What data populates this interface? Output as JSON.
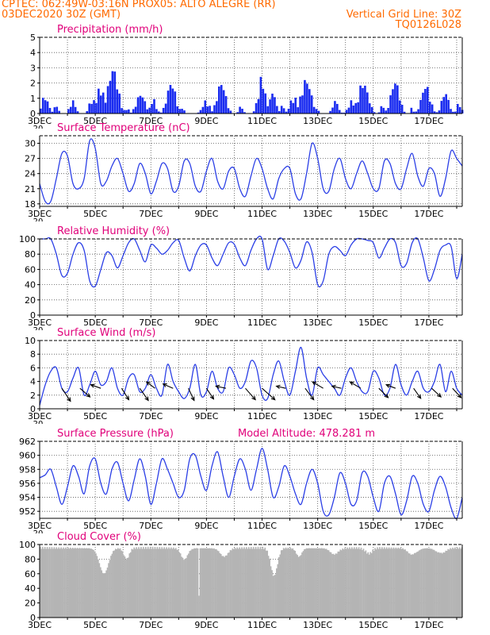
{
  "header": {
    "line1": "CPTEC:   062:49W-03:16N  PROX05: ALTO ALEGRE (RR)",
    "line2": "03DEC2020 30Z (GMT)",
    "right1": "Vertical Grid Line: 30Z",
    "right2": "TQ0126L028"
  },
  "colors": {
    "header": "#ff6a00",
    "title": "#e0007a",
    "series": "#2b3fe6",
    "bars": "#1a2cf0",
    "wind_arrow": "#000000",
    "cloud": "#b4b4b4"
  },
  "x_axis": {
    "tick_labels": [
      "3DEC",
      "5DEC",
      "7DEC",
      "9DEC",
      "11DEC",
      "13DEC",
      "15DEC",
      "17DEC"
    ],
    "label_positions_days": [
      0,
      2,
      4,
      6,
      8,
      10,
      12,
      14
    ],
    "range_days": [
      0,
      15.2
    ],
    "cutoff_label": "20"
  },
  "panels": [
    {
      "id": "precip",
      "title": "Precipitation (mm/h)"
    },
    {
      "id": "temp",
      "title": "Surface Temperature (nC)"
    },
    {
      "id": "rh",
      "title": "Relative Humidity (%)"
    },
    {
      "id": "wind",
      "title": "Surface Wind (m/s)"
    },
    {
      "id": "pres",
      "title": "Surface Pressure (hPa)",
      "subtitle": "Model Altitude: 478.281 m"
    },
    {
      "id": "cloud",
      "title": "Cloud Cover (%)"
    }
  ],
  "chart_data": [
    {
      "type": "bar",
      "title": "Precipitation (mm/h)",
      "ylim": [
        0,
        5
      ],
      "yticks": [
        "0",
        "1",
        "2",
        "3",
        "4",
        "5"
      ],
      "events": [
        {
          "x": 0.15,
          "peak": 1.2,
          "width": 0.25
        },
        {
          "x": 0.55,
          "peak": 0.6,
          "width": 0.15
        },
        {
          "x": 1.15,
          "peak": 0.9,
          "width": 0.2
        },
        {
          "x": 1.85,
          "peak": 1.1,
          "width": 0.2
        },
        {
          "x": 2.15,
          "peak": 1.8,
          "width": 0.3
        },
        {
          "x": 2.6,
          "peak": 3.2,
          "width": 0.35
        },
        {
          "x": 3.1,
          "peak": 0.4,
          "width": 0.15
        },
        {
          "x": 3.6,
          "peak": 1.4,
          "width": 0.3
        },
        {
          "x": 4.05,
          "peak": 1.0,
          "width": 0.2
        },
        {
          "x": 4.7,
          "peak": 2.2,
          "width": 0.3
        },
        {
          "x": 5.1,
          "peak": 0.5,
          "width": 0.1
        },
        {
          "x": 5.95,
          "peak": 0.9,
          "width": 0.25
        },
        {
          "x": 6.5,
          "peak": 2.2,
          "width": 0.3
        },
        {
          "x": 7.2,
          "peak": 0.5,
          "width": 0.15
        },
        {
          "x": 7.95,
          "peak": 2.5,
          "width": 0.25
        },
        {
          "x": 8.35,
          "peak": 1.6,
          "width": 0.2
        },
        {
          "x": 8.7,
          "peak": 0.6,
          "width": 0.15
        },
        {
          "x": 9.1,
          "peak": 1.2,
          "width": 0.25
        },
        {
          "x": 9.55,
          "peak": 2.4,
          "width": 0.35
        },
        {
          "x": 9.95,
          "peak": 0.4,
          "width": 0.1
        },
        {
          "x": 10.6,
          "peak": 0.9,
          "width": 0.2
        },
        {
          "x": 11.2,
          "peak": 0.9,
          "width": 0.25
        },
        {
          "x": 11.6,
          "peak": 2.2,
          "width": 0.35
        },
        {
          "x": 12.3,
          "peak": 0.6,
          "width": 0.15
        },
        {
          "x": 12.75,
          "peak": 2.3,
          "width": 0.3
        },
        {
          "x": 13.35,
          "peak": 0.4,
          "width": 0.1
        },
        {
          "x": 13.85,
          "peak": 2.0,
          "width": 0.3
        },
        {
          "x": 14.55,
          "peak": 1.5,
          "width": 0.25
        },
        {
          "x": 15.05,
          "peak": 0.8,
          "width": 0.15
        }
      ]
    },
    {
      "type": "line",
      "title": "Surface Temperature (nC)",
      "ylim": [
        17.5,
        31.5
      ],
      "yticks": [
        "18",
        "21",
        "24",
        "27",
        "30"
      ],
      "ytick_values": [
        18,
        21,
        24,
        27,
        30
      ],
      "x": [
        0,
        0.2,
        0.4,
        0.6,
        0.8,
        1,
        1.2,
        1.4,
        1.6,
        1.8,
        2,
        2.2,
        2.4,
        2.6,
        2.8,
        3,
        3.2,
        3.4,
        3.6,
        3.8,
        4,
        4.2,
        4.4,
        4.6,
        4.8,
        5,
        5.2,
        5.4,
        5.6,
        5.8,
        6,
        6.2,
        6.4,
        6.6,
        6.8,
        7,
        7.2,
        7.4,
        7.6,
        7.8,
        8,
        8.2,
        8.4,
        8.6,
        8.8,
        9,
        9.2,
        9.4,
        9.6,
        9.8,
        10,
        10.2,
        10.4,
        10.6,
        10.8,
        11,
        11.2,
        11.4,
        11.6,
        11.8,
        12,
        12.2,
        12.4,
        12.6,
        12.8,
        13,
        13.2,
        13.4,
        13.6,
        13.8,
        14,
        14.2,
        14.4,
        14.6,
        14.8,
        15,
        15.2
      ],
      "y": [
        22,
        18.5,
        18.5,
        23,
        28,
        27.5,
        22,
        21,
        23,
        30.5,
        29,
        22,
        22.5,
        25.5,
        27,
        24,
        20.5,
        22,
        26,
        24,
        20,
        22.5,
        26,
        25,
        20.5,
        21.5,
        26.5,
        26,
        21.5,
        20.5,
        24.5,
        27,
        22.5,
        21,
        24.5,
        25,
        21,
        19.5,
        23.5,
        27,
        25,
        21,
        19,
        23,
        25,
        25,
        20,
        19,
        24,
        30,
        27,
        21,
        20.5,
        25,
        27,
        23,
        21,
        24,
        26.5,
        24,
        21,
        21,
        26.5,
        26,
        22,
        21,
        25,
        28,
        23.5,
        21.5,
        25,
        24,
        19.5,
        23,
        28.5,
        27,
        25.5
      ]
    },
    {
      "type": "line",
      "title": "Relative Humidity (%)",
      "ylim": [
        0,
        100
      ],
      "yticks": [
        "0",
        "20",
        "40",
        "60",
        "80",
        "100"
      ],
      "ytick_values": [
        0,
        20,
        40,
        60,
        80,
        100
      ],
      "x": [
        0,
        0.2,
        0.4,
        0.6,
        0.8,
        1,
        1.2,
        1.4,
        1.6,
        1.8,
        2,
        2.2,
        2.4,
        2.6,
        2.8,
        3,
        3.2,
        3.4,
        3.6,
        3.8,
        4,
        4.2,
        4.4,
        4.6,
        4.8,
        5,
        5.2,
        5.4,
        5.6,
        5.8,
        6,
        6.2,
        6.4,
        6.6,
        6.8,
        7,
        7.2,
        7.4,
        7.6,
        7.8,
        8,
        8.2,
        8.4,
        8.6,
        8.8,
        9,
        9.2,
        9.4,
        9.6,
        9.8,
        10,
        10.2,
        10.4,
        10.6,
        10.8,
        11,
        11.2,
        11.4,
        11.6,
        11.8,
        12,
        12.2,
        12.4,
        12.6,
        12.8,
        13,
        13.2,
        13.4,
        13.6,
        13.8,
        14,
        14.2,
        14.4,
        14.6,
        14.8,
        15,
        15.2
      ],
      "y": [
        100,
        100,
        100,
        80,
        52,
        55,
        80,
        95,
        85,
        45,
        38,
        60,
        82,
        78,
        62,
        78,
        95,
        100,
        85,
        70,
        92,
        88,
        80,
        85,
        95,
        98,
        75,
        58,
        78,
        92,
        92,
        75,
        65,
        80,
        95,
        93,
        75,
        65,
        85,
        100,
        100,
        60,
        78,
        100,
        97,
        82,
        62,
        72,
        96,
        82,
        40,
        45,
        80,
        90,
        85,
        78,
        92,
        100,
        100,
        98,
        95,
        75,
        88,
        100,
        95,
        65,
        68,
        95,
        100,
        75,
        45,
        60,
        85,
        92,
        90,
        48,
        80
      ]
    },
    {
      "type": "line",
      "title": "Surface Wind (m/s)",
      "ylim": [
        0,
        10
      ],
      "yticks": [
        "0",
        "2",
        "4",
        "6",
        "8",
        "10"
      ],
      "ytick_values": [
        0,
        2,
        4,
        6,
        8,
        10
      ],
      "x": [
        0,
        0.2,
        0.4,
        0.6,
        0.8,
        1,
        1.2,
        1.4,
        1.6,
        1.8,
        2,
        2.2,
        2.4,
        2.6,
        2.8,
        3,
        3.2,
        3.4,
        3.6,
        3.8,
        4,
        4.2,
        4.4,
        4.6,
        4.8,
        5,
        5.2,
        5.4,
        5.6,
        5.8,
        6,
        6.2,
        6.4,
        6.6,
        6.8,
        7,
        7.2,
        7.4,
        7.6,
        7.8,
        8,
        8.2,
        8.4,
        8.6,
        8.8,
        9,
        9.2,
        9.4,
        9.6,
        9.8,
        10,
        10.2,
        10.4,
        10.6,
        10.8,
        11,
        11.2,
        11.4,
        11.6,
        11.8,
        12,
        12.2,
        12.4,
        12.6,
        12.8,
        13,
        13.2,
        13.4,
        13.6,
        13.8,
        14,
        14.2,
        14.4,
        14.6,
        14.8,
        15,
        15.2
      ],
      "y": [
        0.5,
        3.5,
        5.5,
        6,
        3,
        2.5,
        4.5,
        6,
        2,
        3.5,
        5.5,
        3.5,
        4,
        6,
        3,
        2,
        4.5,
        5,
        2.5,
        3,
        5,
        3,
        2,
        6.5,
        4,
        2.5,
        1.5,
        3,
        6.5,
        2,
        2.5,
        5.5,
        3,
        2.5,
        6,
        5,
        3,
        4,
        7,
        6,
        2,
        1.5,
        5,
        7,
        4,
        2,
        5.5,
        9,
        4.5,
        2,
        6,
        5,
        4,
        3,
        2,
        4.5,
        6,
        4,
        2.5,
        2.5,
        5.5,
        4.5,
        2,
        3,
        6.5,
        3.5,
        2,
        4,
        5.5,
        3,
        2.5,
        4,
        6.5,
        2.5,
        5.5,
        3,
        2
      ],
      "arrows": [
        {
          "x": 0.8,
          "u": 1.2,
          "v": -1.8
        },
        {
          "x": 1.45,
          "u": 1.4,
          "v": -1.2
        },
        {
          "x": 2.2,
          "u": -1.4,
          "v": 0.5
        },
        {
          "x": 2.95,
          "u": 1,
          "v": -1.6
        },
        {
          "x": 3.6,
          "u": 1.2,
          "v": -1.7
        },
        {
          "x": 4.15,
          "u": -1.2,
          "v": 0.9
        },
        {
          "x": 4.8,
          "u": -1.4,
          "v": 0.6
        },
        {
          "x": 5.35,
          "u": 0.8,
          "v": -1.7
        },
        {
          "x": 6.0,
          "u": 1.0,
          "v": -1.5
        },
        {
          "x": 6.7,
          "u": -1.4,
          "v": 0.3
        },
        {
          "x": 7.4,
          "u": 1.4,
          "v": -1.6
        },
        {
          "x": 8.0,
          "u": 1.8,
          "v": -1.6
        },
        {
          "x": 8.85,
          "u": -1.3,
          "v": 0.3
        },
        {
          "x": 9.55,
          "u": 1.2,
          "v": -1.6
        },
        {
          "x": 10.2,
          "u": -1.5,
          "v": 0.9
        },
        {
          "x": 10.85,
          "u": -1.3,
          "v": 0.3
        },
        {
          "x": 11.55,
          "u": -1.5,
          "v": 0.9
        },
        {
          "x": 12.2,
          "u": 1.3,
          "v": -1.3
        },
        {
          "x": 12.8,
          "u": -1.3,
          "v": 0.5
        },
        {
          "x": 13.45,
          "u": 1.0,
          "v": -1.4
        },
        {
          "x": 14.1,
          "u": 1.3,
          "v": -1.2
        },
        {
          "x": 14.85,
          "u": 1.2,
          "v": -1.3
        }
      ]
    },
    {
      "type": "line",
      "title": "Surface Pressure (hPa)",
      "ylim": [
        951,
        962
      ],
      "yticks": [
        "952",
        "954",
        "956",
        "958",
        "960",
        "962"
      ],
      "ytick_values": [
        952,
        954,
        956,
        958,
        960,
        962
      ],
      "x": [
        0,
        0.2,
        0.4,
        0.6,
        0.8,
        1,
        1.2,
        1.4,
        1.6,
        1.8,
        2,
        2.2,
        2.4,
        2.6,
        2.8,
        3,
        3.2,
        3.4,
        3.6,
        3.8,
        4,
        4.2,
        4.4,
        4.6,
        4.8,
        5,
        5.2,
        5.4,
        5.6,
        5.8,
        6,
        6.2,
        6.4,
        6.6,
        6.8,
        7,
        7.2,
        7.4,
        7.6,
        7.8,
        8,
        8.2,
        8.4,
        8.6,
        8.8,
        9,
        9.2,
        9.4,
        9.6,
        9.8,
        10,
        10.2,
        10.4,
        10.6,
        10.8,
        11,
        11.2,
        11.4,
        11.6,
        11.8,
        12,
        12.2,
        12.4,
        12.6,
        12.8,
        13,
        13.2,
        13.4,
        13.6,
        13.8,
        14,
        14.2,
        14.4,
        14.6,
        14.8,
        15,
        15.2
      ],
      "y": [
        956.8,
        957.2,
        958,
        955.5,
        953,
        955.5,
        958.5,
        957,
        954.5,
        958.5,
        959.5,
        956,
        954.5,
        958,
        959,
        956,
        953.5,
        956.5,
        959.5,
        957,
        953,
        956,
        959.5,
        958,
        956,
        954,
        955,
        959.5,
        960,
        957,
        955,
        958.5,
        960.5,
        957,
        954,
        957,
        959.5,
        958,
        955,
        958,
        961,
        958,
        954,
        955.5,
        958.5,
        957,
        954.5,
        953,
        956,
        958,
        956,
        952,
        951.5,
        954,
        957.5,
        956,
        953,
        953.5,
        957.5,
        957,
        954,
        952,
        956,
        957,
        954.5,
        951.5,
        953.5,
        957,
        956,
        953,
        952,
        955,
        957,
        955.5,
        952.5,
        951,
        954
      ]
    },
    {
      "type": "area",
      "title": "Cloud Cover (%)",
      "ylim": [
        0,
        100
      ],
      "yticks": [
        "0",
        "20",
        "40",
        "60",
        "80",
        "100"
      ],
      "ytick_values": [
        0,
        20,
        40,
        60,
        80,
        100
      ],
      "dips": [
        {
          "x": 2.3,
          "depth": 35,
          "width": 0.35
        },
        {
          "x": 3.1,
          "depth": 15,
          "width": 0.2
        },
        {
          "x": 5.2,
          "depth": 18,
          "width": 0.25
        },
        {
          "x": 5.7,
          "depth": 96,
          "width": 0.02
        },
        {
          "x": 6.6,
          "depth": 12,
          "width": 0.3
        },
        {
          "x": 8.4,
          "depth": 40,
          "width": 0.25
        },
        {
          "x": 9.3,
          "depth": 12,
          "width": 0.2
        },
        {
          "x": 10.6,
          "depth": 10,
          "width": 0.3
        },
        {
          "x": 11.8,
          "depth": 10,
          "width": 0.25
        },
        {
          "x": 13.4,
          "depth": 12,
          "width": 0.3
        },
        {
          "x": 14.4,
          "depth": 10,
          "width": 0.3
        }
      ]
    }
  ]
}
